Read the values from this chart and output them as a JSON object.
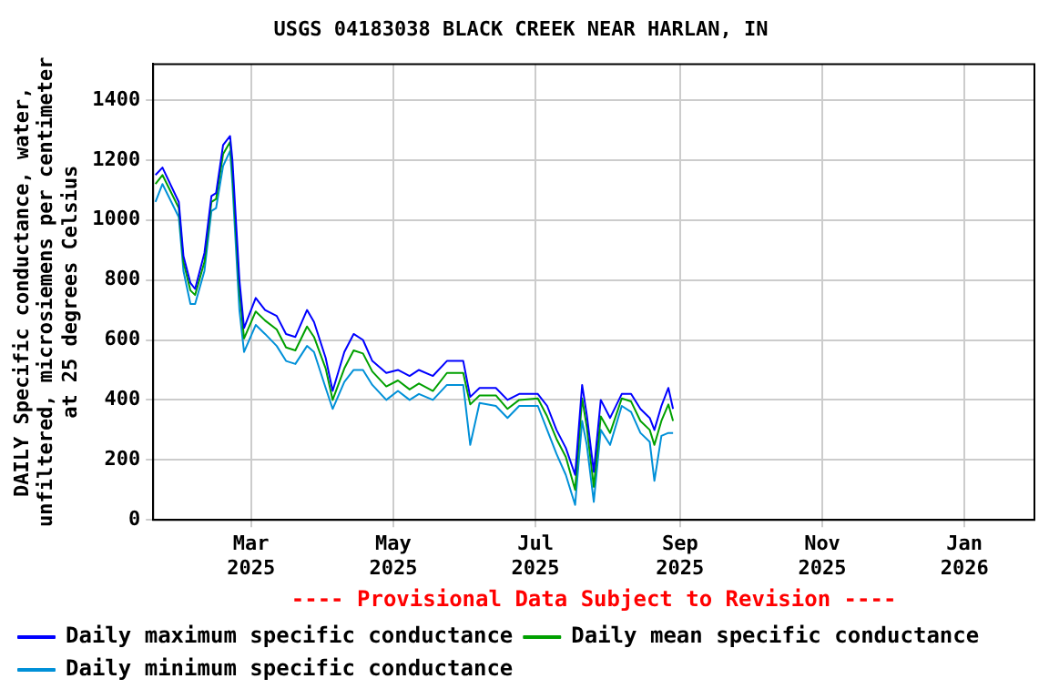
{
  "chart_data": {
    "type": "line",
    "title": "USGS 04183038 BLACK CREEK NEAR HARLAN, IN",
    "ylabel": "DAILY Specific conductance, water, unfiltered, microsiemens per centimeter at 25 degrees Celsius",
    "annotations": [
      "---- Provisional Data Subject to Revision ----"
    ],
    "x": [
      "2025-01-19",
      "2025-01-22",
      "2025-01-29",
      "2025-01-31",
      "2025-02-03",
      "2025-02-05",
      "2025-02-09",
      "2025-02-12",
      "2025-02-14",
      "2025-02-17",
      "2025-02-20",
      "2025-02-21",
      "2025-02-24",
      "2025-02-26",
      "2025-03-03",
      "2025-03-07",
      "2025-03-12",
      "2025-03-16",
      "2025-03-20",
      "2025-03-25",
      "2025-03-28",
      "2025-04-02",
      "2025-04-05",
      "2025-04-10",
      "2025-04-14",
      "2025-04-18",
      "2025-04-22",
      "2025-04-28",
      "2025-05-03",
      "2025-05-08",
      "2025-05-12",
      "2025-05-18",
      "2025-05-24",
      "2025-05-31",
      "2025-06-03",
      "2025-06-07",
      "2025-06-14",
      "2025-06-19",
      "2025-06-24",
      "2025-07-02",
      "2025-07-06",
      "2025-07-10",
      "2025-07-14",
      "2025-07-18",
      "2025-07-21",
      "2025-07-23",
      "2025-07-26",
      "2025-07-29",
      "2025-08-02",
      "2025-08-07",
      "2025-08-11",
      "2025-08-15",
      "2025-08-19",
      "2025-08-21",
      "2025-08-24",
      "2025-08-27",
      "2025-08-29"
    ],
    "series": [
      {
        "name": "Daily maximum specific conductance",
        "color": "#0000ff",
        "values": [
          1150,
          1175,
          1060,
          880,
          790,
          770,
          890,
          1080,
          1090,
          1250,
          1280,
          1200,
          800,
          640,
          740,
          700,
          680,
          620,
          610,
          700,
          660,
          540,
          430,
          560,
          620,
          600,
          530,
          490,
          500,
          480,
          500,
          480,
          530,
          530,
          410,
          440,
          440,
          400,
          420,
          420,
          380,
          300,
          240,
          150,
          450,
          350,
          160,
          400,
          340,
          420,
          420,
          370,
          340,
          300,
          380,
          440,
          370
        ]
      },
      {
        "name": "Daily mean specific conductance",
        "color": "#00a000",
        "values": [
          1120,
          1150,
          1040,
          860,
          765,
          750,
          860,
          1060,
          1070,
          1220,
          1260,
          1160,
          765,
          605,
          695,
          665,
          635,
          575,
          565,
          645,
          610,
          505,
          400,
          505,
          565,
          555,
          495,
          445,
          465,
          435,
          455,
          430,
          490,
          490,
          385,
          415,
          415,
          370,
          400,
          405,
          345,
          270,
          210,
          100,
          405,
          310,
          110,
          345,
          290,
          405,
          395,
          330,
          300,
          250,
          330,
          385,
          330
        ]
      },
      {
        "name": "Daily minimum specific conductance",
        "color": "#0090d8",
        "values": [
          1060,
          1120,
          1010,
          830,
          720,
          720,
          830,
          1030,
          1040,
          1180,
          1230,
          1120,
          700,
          560,
          650,
          620,
          580,
          530,
          520,
          580,
          560,
          440,
          370,
          460,
          500,
          500,
          450,
          400,
          430,
          400,
          420,
          400,
          450,
          450,
          250,
          390,
          380,
          340,
          380,
          380,
          300,
          220,
          150,
          50,
          330,
          250,
          60,
          300,
          250,
          380,
          360,
          290,
          260,
          130,
          280,
          290,
          290
        ]
      }
    ],
    "xlim": [
      "2025-01-18",
      "2026-01-31"
    ],
    "xticks": [
      {
        "value": "2025-03-01",
        "label": "Mar 2025"
      },
      {
        "value": "2025-05-01",
        "label": "May 2025"
      },
      {
        "value": "2025-07-01",
        "label": "Jul 2025"
      },
      {
        "value": "2025-09-01",
        "label": "Sep 2025"
      },
      {
        "value": "2025-11-01",
        "label": "Nov 2025"
      },
      {
        "value": "2026-01-01",
        "label": "Jan 2026"
      }
    ],
    "ylim": [
      0,
      1520
    ],
    "yticks": [
      0,
      200,
      400,
      600,
      800,
      1000,
      1200,
      1400
    ],
    "grid": true,
    "legend": "bottom",
    "marker": "none",
    "line_style": "solid"
  }
}
